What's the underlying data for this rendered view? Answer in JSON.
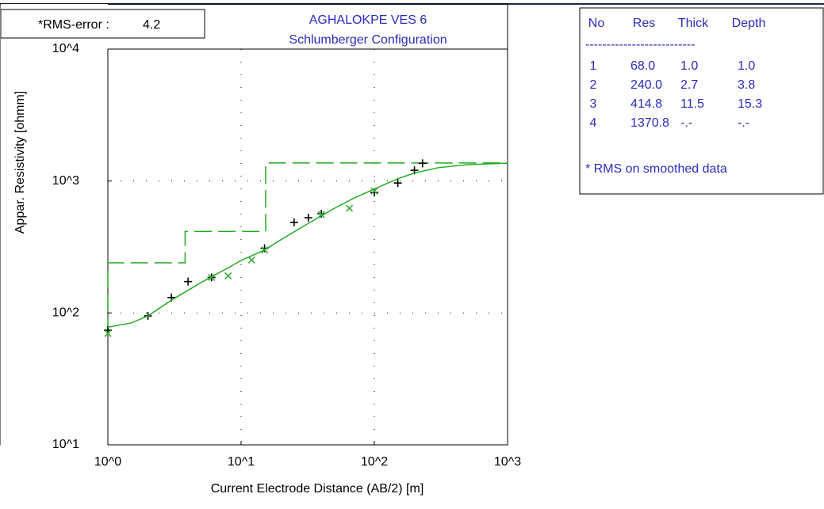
{
  "chart_data": {
    "type": "line",
    "title": "AGHALOKPE VES 6",
    "subtitle": "Schlumberger Configuration",
    "x_label": "Current Electrode Distance (AB/2) [m]",
    "y_label": "Appar. Resistivity [ohmm]",
    "log_x": true,
    "log_y": true,
    "grid": true,
    "xlim": [
      1,
      1000
    ],
    "ylim": [
      10,
      10000
    ],
    "xticks": [
      {
        "value": 1,
        "label": "10^0"
      },
      {
        "value": 10,
        "label": "10^1"
      },
      {
        "value": 100,
        "label": "10^2"
      },
      {
        "value": 1000,
        "label": "10^3"
      }
    ],
    "yticks": [
      {
        "value": 10,
        "label": "10^1"
      },
      {
        "value": 100,
        "label": "10^2"
      },
      {
        "value": 1000,
        "label": "10^3"
      },
      {
        "value": 10000,
        "label": "10^4"
      }
    ],
    "series": [
      {
        "color": "#000000",
        "marker": "plus",
        "x": [
          1,
          2,
          3,
          4,
          6,
          15,
          25,
          32,
          40,
          100,
          150,
          200,
          230
        ],
        "values": [
          74,
          95,
          131,
          173,
          186,
          309,
          486,
          527,
          565,
          818,
          966,
          1204,
          1361
        ]
      },
      {
        "color": "#33aa33",
        "marker": "cross",
        "x": [
          1,
          6,
          8,
          12,
          15,
          40,
          65,
          100
        ],
        "values": [
          70,
          186,
          191,
          252,
          300,
          557,
          622,
          840
        ]
      },
      {
        "color": "#22aa22",
        "marker": "none",
        "x": [
          1,
          1.5,
          2,
          3,
          5,
          8,
          10,
          15,
          20,
          30,
          50,
          70,
          100,
          150,
          200,
          300,
          500,
          1000
        ],
        "values": [
          78,
          84,
          95,
          125,
          170,
          220,
          250,
          300,
          360,
          460,
          620,
          740,
          870,
          1040,
          1150,
          1260,
          1330,
          1365
        ]
      }
    ],
    "model_color": "#22aa22"
  },
  "rms": {
    "label": "*RMS-error :",
    "value": "4.2"
  },
  "table": {
    "header": [
      "No",
      "Res",
      "Thick",
      "Depth"
    ],
    "separator": "--------------------------",
    "rows": [
      [
        "1",
        "68.0",
        "1.0",
        "1.0"
      ],
      [
        "2",
        "240.0",
        "2.7",
        "3.8"
      ],
      [
        "3",
        "414.8",
        "11.5",
        "15.3"
      ],
      [
        "4",
        "1370.8",
        "-.-",
        "-.-"
      ]
    ],
    "note": "* RMS on smoothed data"
  }
}
